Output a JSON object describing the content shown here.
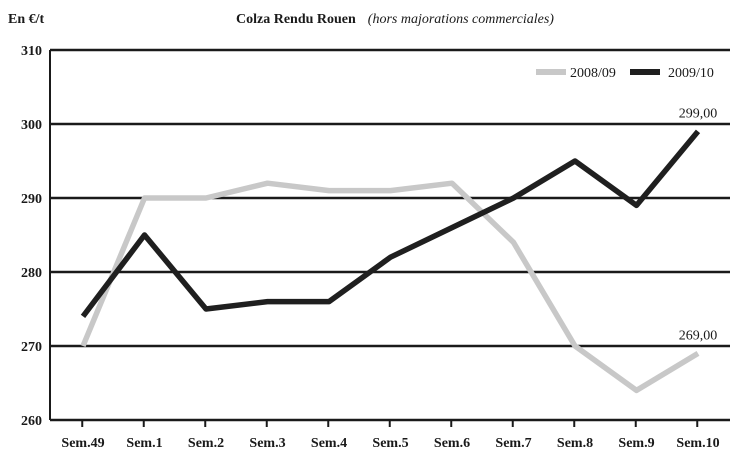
{
  "chart_data": {
    "type": "line",
    "title": "Colza Rendu Rouen",
    "subtitle": "(hors majorations commerciales)",
    "ylabel": "En €/t",
    "xlabel": "",
    "ylim": [
      260,
      310
    ],
    "yticks": [
      260,
      270,
      280,
      290,
      300,
      310
    ],
    "categories": [
      "Sem.49",
      "Sem.1",
      "Sem.2",
      "Sem.3",
      "Sem.4",
      "Sem.5",
      "Sem.6",
      "Sem.7",
      "Sem.8",
      "Sem.9",
      "Sem.10"
    ],
    "series": [
      {
        "name": "2008/09",
        "color": "#c8c8c8",
        "values": [
          270,
          290,
          290,
          292,
          291,
          291,
          292,
          284,
          270,
          264,
          269
        ],
        "end_label": "269,00"
      },
      {
        "name": "2009/10",
        "color": "#1f1f1f",
        "values": [
          274,
          285,
          275,
          276,
          276,
          282,
          286,
          290,
          295,
          289,
          299
        ],
        "end_label": "299,00"
      }
    ],
    "grid": "horizontal",
    "legend_position": "top-right"
  }
}
